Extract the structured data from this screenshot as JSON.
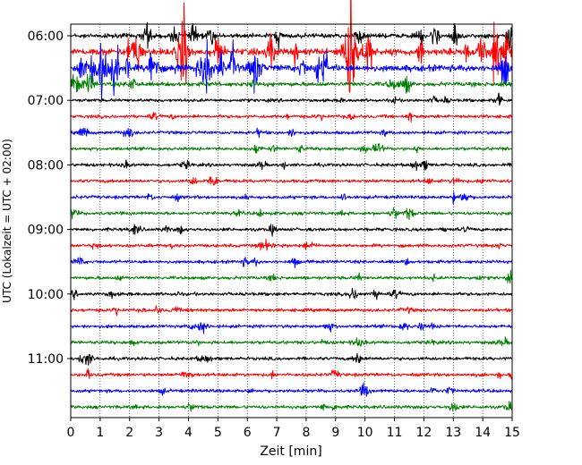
{
  "chart_data": {
    "type": "line",
    "xlabel": "Zeit  [min]",
    "ylabel": "UTC (Lokalzeit = UTC + 02:00)",
    "xlim": [
      0,
      15
    ],
    "x_ticks": [
      "0",
      "1",
      "2",
      "3",
      "4",
      "5",
      "6",
      "7",
      "8",
      "9",
      "10",
      "11",
      "12",
      "13",
      "14",
      "15"
    ],
    "y_tick_labels": [
      {
        "label": "06:00",
        "trace_index": 0
      },
      {
        "label": "07:00",
        "trace_index": 4
      },
      {
        "label": "08:00",
        "trace_index": 8
      },
      {
        "label": "09:00",
        "trace_index": 12
      },
      {
        "label": "10:00",
        "trace_index": 16
      },
      {
        "label": "11:00",
        "trace_index": 20
      }
    ],
    "grid": "vertical-dotted",
    "trace_interval_minutes": 15,
    "colors": [
      "#000000",
      "#ff0000",
      "#0000ff",
      "#008000"
    ],
    "traces": [
      {
        "start": "06:00",
        "color": "#000000",
        "activity": "high"
      },
      {
        "start": "06:15",
        "color": "#ff0000",
        "activity": "very-high"
      },
      {
        "start": "06:30",
        "color": "#0000ff",
        "activity": "very-high"
      },
      {
        "start": "06:45",
        "color": "#008000",
        "activity": "medium"
      },
      {
        "start": "07:00",
        "color": "#000000",
        "activity": "low"
      },
      {
        "start": "07:15",
        "color": "#ff0000",
        "activity": "low"
      },
      {
        "start": "07:30",
        "color": "#0000ff",
        "activity": "low"
      },
      {
        "start": "07:45",
        "color": "#008000",
        "activity": "low"
      },
      {
        "start": "08:00",
        "color": "#000000",
        "activity": "low"
      },
      {
        "start": "08:15",
        "color": "#ff0000",
        "activity": "low"
      },
      {
        "start": "08:30",
        "color": "#0000ff",
        "activity": "low"
      },
      {
        "start": "08:45",
        "color": "#008000",
        "activity": "low"
      },
      {
        "start": "09:00",
        "color": "#000000",
        "activity": "low"
      },
      {
        "start": "09:15",
        "color": "#ff0000",
        "activity": "low"
      },
      {
        "start": "09:30",
        "color": "#0000ff",
        "activity": "low"
      },
      {
        "start": "09:45",
        "color": "#008000",
        "activity": "low"
      },
      {
        "start": "10:00",
        "color": "#000000",
        "activity": "low"
      },
      {
        "start": "10:15",
        "color": "#ff0000",
        "activity": "low"
      },
      {
        "start": "10:30",
        "color": "#0000ff",
        "activity": "low"
      },
      {
        "start": "10:45",
        "color": "#008000",
        "activity": "low"
      },
      {
        "start": "11:00",
        "color": "#000000",
        "activity": "low"
      },
      {
        "start": "11:15",
        "color": "#ff0000",
        "activity": "low"
      },
      {
        "start": "11:30",
        "color": "#0000ff",
        "activity": "low"
      },
      {
        "start": "11:45",
        "color": "#008000",
        "activity": "low"
      }
    ]
  }
}
